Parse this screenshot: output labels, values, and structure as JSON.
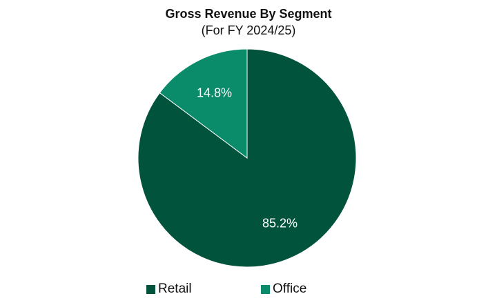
{
  "chart_data": {
    "type": "pie",
    "title": "Gross Revenue By Segment",
    "subtitle": "(For FY 2024/25)",
    "categories": [
      "Retail",
      "Office"
    ],
    "values": [
      85.2,
      14.8
    ],
    "labels": [
      "85.2%",
      "14.8%"
    ],
    "colors": [
      "#02533c",
      "#0a8b6a"
    ],
    "start_angle": "12 o'clock",
    "direction": "clockwise",
    "legend": "bottom"
  }
}
